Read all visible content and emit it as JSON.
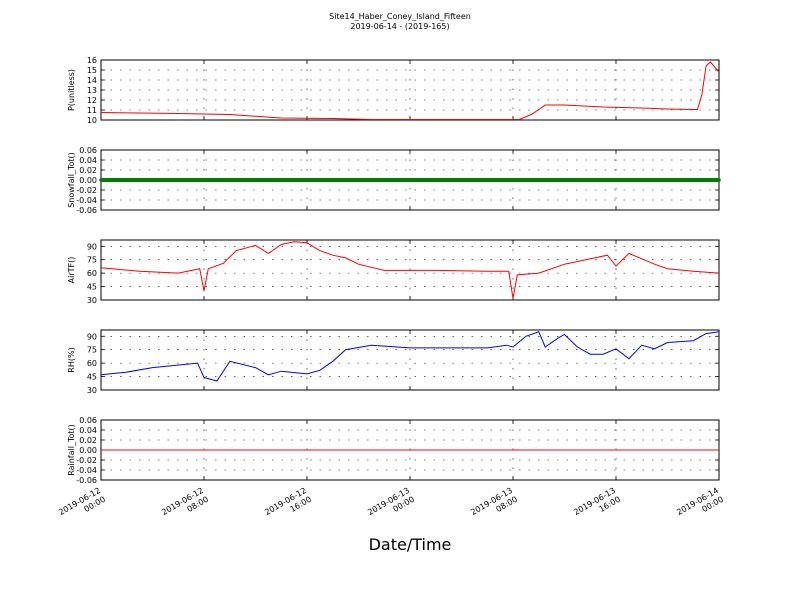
{
  "figure": {
    "title": "Site14_Haber_Coney_Island_Fifteen",
    "subtitle": "2019-06-14 - (2019-165)",
    "xlabel": "Date/Time"
  },
  "chart_data": [
    {
      "type": "line",
      "ylabel": "P(unitless)",
      "ylim": [
        10,
        16
      ],
      "yticks": [
        10,
        11,
        12,
        13,
        14,
        15,
        16
      ],
      "xlim": [
        "2019-06-12 00:00",
        "2019-06-14 00:00"
      ],
      "grid": true,
      "series": [
        {
          "color": "#ff0000",
          "x": [
            "2019-06-12 00:00",
            "2019-06-12 03:00",
            "2019-06-12 06:00",
            "2019-06-12 08:00",
            "2019-06-12 10:00",
            "2019-06-12 14:00",
            "2019-06-12 18:00",
            "2019-06-12 21:00",
            "2019-06-13 00:00",
            "2019-06-13 04:00",
            "2019-06-13 08:00",
            "2019-06-13 08:30",
            "2019-06-13 09:30",
            "2019-06-13 10:30",
            "2019-06-13 12:00",
            "2019-06-13 15:00",
            "2019-06-13 18:00",
            "2019-06-13 20:00",
            "2019-06-13 22:00",
            "2019-06-13 22:20",
            "2019-06-13 22:40",
            "2019-06-13 23:00",
            "2019-06-13 23:20",
            "2019-06-14 00:00"
          ],
          "y": [
            10.75,
            10.7,
            10.65,
            10.6,
            10.55,
            10.2,
            10.15,
            10.05,
            10.05,
            10.05,
            10.05,
            10.05,
            10.6,
            11.5,
            11.5,
            11.3,
            11.2,
            11.1,
            11.05,
            11.05,
            12.5,
            15.4,
            15.8,
            14.8
          ]
        }
      ]
    },
    {
      "type": "line",
      "ylabel": "Snowfall_Tot()",
      "ylim": [
        -0.06,
        0.06
      ],
      "yticks": [
        -0.06,
        -0.04,
        -0.02,
        0.0,
        0.02,
        0.04,
        0.06
      ],
      "xlim": [
        "2019-06-12 00:00",
        "2019-06-14 00:00"
      ],
      "grid": true,
      "series": [
        {
          "color": "#008000",
          "marker": "dot",
          "x": [
            "2019-06-12 00:00",
            "2019-06-14 00:00"
          ],
          "y": [
            0.0,
            0.0
          ]
        }
      ]
    },
    {
      "type": "line",
      "ylabel": "AirTF()",
      "ylim": [
        30,
        97
      ],
      "yticks": [
        30,
        45,
        60,
        75,
        90
      ],
      "xlim": [
        "2019-06-12 00:00",
        "2019-06-14 00:00"
      ],
      "grid": true,
      "series": [
        {
          "color": "#ff0000",
          "x": [
            "2019-06-12 00:00",
            "2019-06-12 03:00",
            "2019-06-12 06:00",
            "2019-06-12 07:40",
            "2019-06-12 08:00",
            "2019-06-12 08:20",
            "2019-06-12 09:30",
            "2019-06-12 10:30",
            "2019-06-12 12:00",
            "2019-06-12 13:00",
            "2019-06-12 14:00",
            "2019-06-12 15:00",
            "2019-06-12 16:00",
            "2019-06-12 17:00",
            "2019-06-12 18:00",
            "2019-06-12 19:00",
            "2019-06-12 20:00",
            "2019-06-12 22:00",
            "2019-06-13 02:00",
            "2019-06-13 06:00",
            "2019-06-13 07:40",
            "2019-06-13 08:00",
            "2019-06-13 08:20",
            "2019-06-13 10:00",
            "2019-06-13 12:00",
            "2019-06-13 14:00",
            "2019-06-13 15:20",
            "2019-06-13 16:00",
            "2019-06-13 17:00",
            "2019-06-13 18:00",
            "2019-06-13 19:00",
            "2019-06-13 20:00",
            "2019-06-13 22:00",
            "2019-06-14 00:00"
          ],
          "y": [
            66,
            62,
            60,
            65,
            40,
            65,
            71,
            85,
            91,
            82,
            92,
            95,
            94,
            85,
            80,
            77,
            70,
            63,
            63,
            62,
            62,
            32,
            58,
            60,
            70,
            76,
            80,
            68,
            82,
            76,
            70,
            65,
            62,
            60
          ]
        }
      ]
    },
    {
      "type": "line",
      "ylabel": "RH(%)",
      "ylim": [
        30,
        97
      ],
      "yticks": [
        30,
        45,
        60,
        75,
        90
      ],
      "xlim": [
        "2019-06-12 00:00",
        "2019-06-14 00:00"
      ],
      "grid": true,
      "series": [
        {
          "color": "#0000ff",
          "x": [
            "2019-06-12 00:00",
            "2019-06-12 02:00",
            "2019-06-12 04:00",
            "2019-06-12 07:30",
            "2019-06-12 08:00",
            "2019-06-12 09:00",
            "2019-06-12 10:00",
            "2019-06-12 12:00",
            "2019-06-12 13:00",
            "2019-06-12 14:00",
            "2019-06-12 16:00",
            "2019-06-12 17:00",
            "2019-06-12 18:00",
            "2019-06-12 19:00",
            "2019-06-12 21:00",
            "2019-06-13 00:00",
            "2019-06-13 06:00",
            "2019-06-13 07:30",
            "2019-06-13 08:00",
            "2019-06-13 09:00",
            "2019-06-13 10:00",
            "2019-06-13 10:30",
            "2019-06-13 11:30",
            "2019-06-13 12:00",
            "2019-06-13 13:00",
            "2019-06-13 14:00",
            "2019-06-13 15:00",
            "2019-06-13 16:00",
            "2019-06-13 17:00",
            "2019-06-13 18:00",
            "2019-06-13 19:00",
            "2019-06-13 20:00",
            "2019-06-13 22:00",
            "2019-06-13 23:00",
            "2019-06-14 00:00"
          ],
          "y": [
            47,
            50,
            55,
            60,
            44,
            40,
            62,
            55,
            47,
            51,
            48,
            52,
            62,
            75,
            80,
            77,
            77,
            80,
            78,
            90,
            95,
            78,
            88,
            92,
            78,
            70,
            70,
            76,
            65,
            80,
            76,
            83,
            85,
            93,
            95
          ]
        }
      ]
    },
    {
      "type": "line",
      "ylabel": "Rainfall_Tot()",
      "ylim": [
        -0.06,
        0.06
      ],
      "yticks": [
        -0.06,
        -0.04,
        -0.02,
        0.0,
        0.02,
        0.04,
        0.06
      ],
      "xlim": [
        "2019-06-12 00:00",
        "2019-06-14 00:00"
      ],
      "grid": true,
      "series": [
        {
          "color": "#ff0000",
          "x": [
            "2019-06-12 00:00",
            "2019-06-14 00:00"
          ],
          "y": [
            0.0,
            0.0
          ]
        }
      ],
      "xtick_labels": [
        [
          "2019-06-12",
          "00:00"
        ],
        [
          "2019-06-12",
          "08:00"
        ],
        [
          "2019-06-12",
          "16:00"
        ],
        [
          "2019-06-13",
          "00:00"
        ],
        [
          "2019-06-13",
          "08:00"
        ],
        [
          "2019-06-13",
          "16:00"
        ],
        [
          "2019-06-14",
          "00:00"
        ]
      ]
    }
  ]
}
